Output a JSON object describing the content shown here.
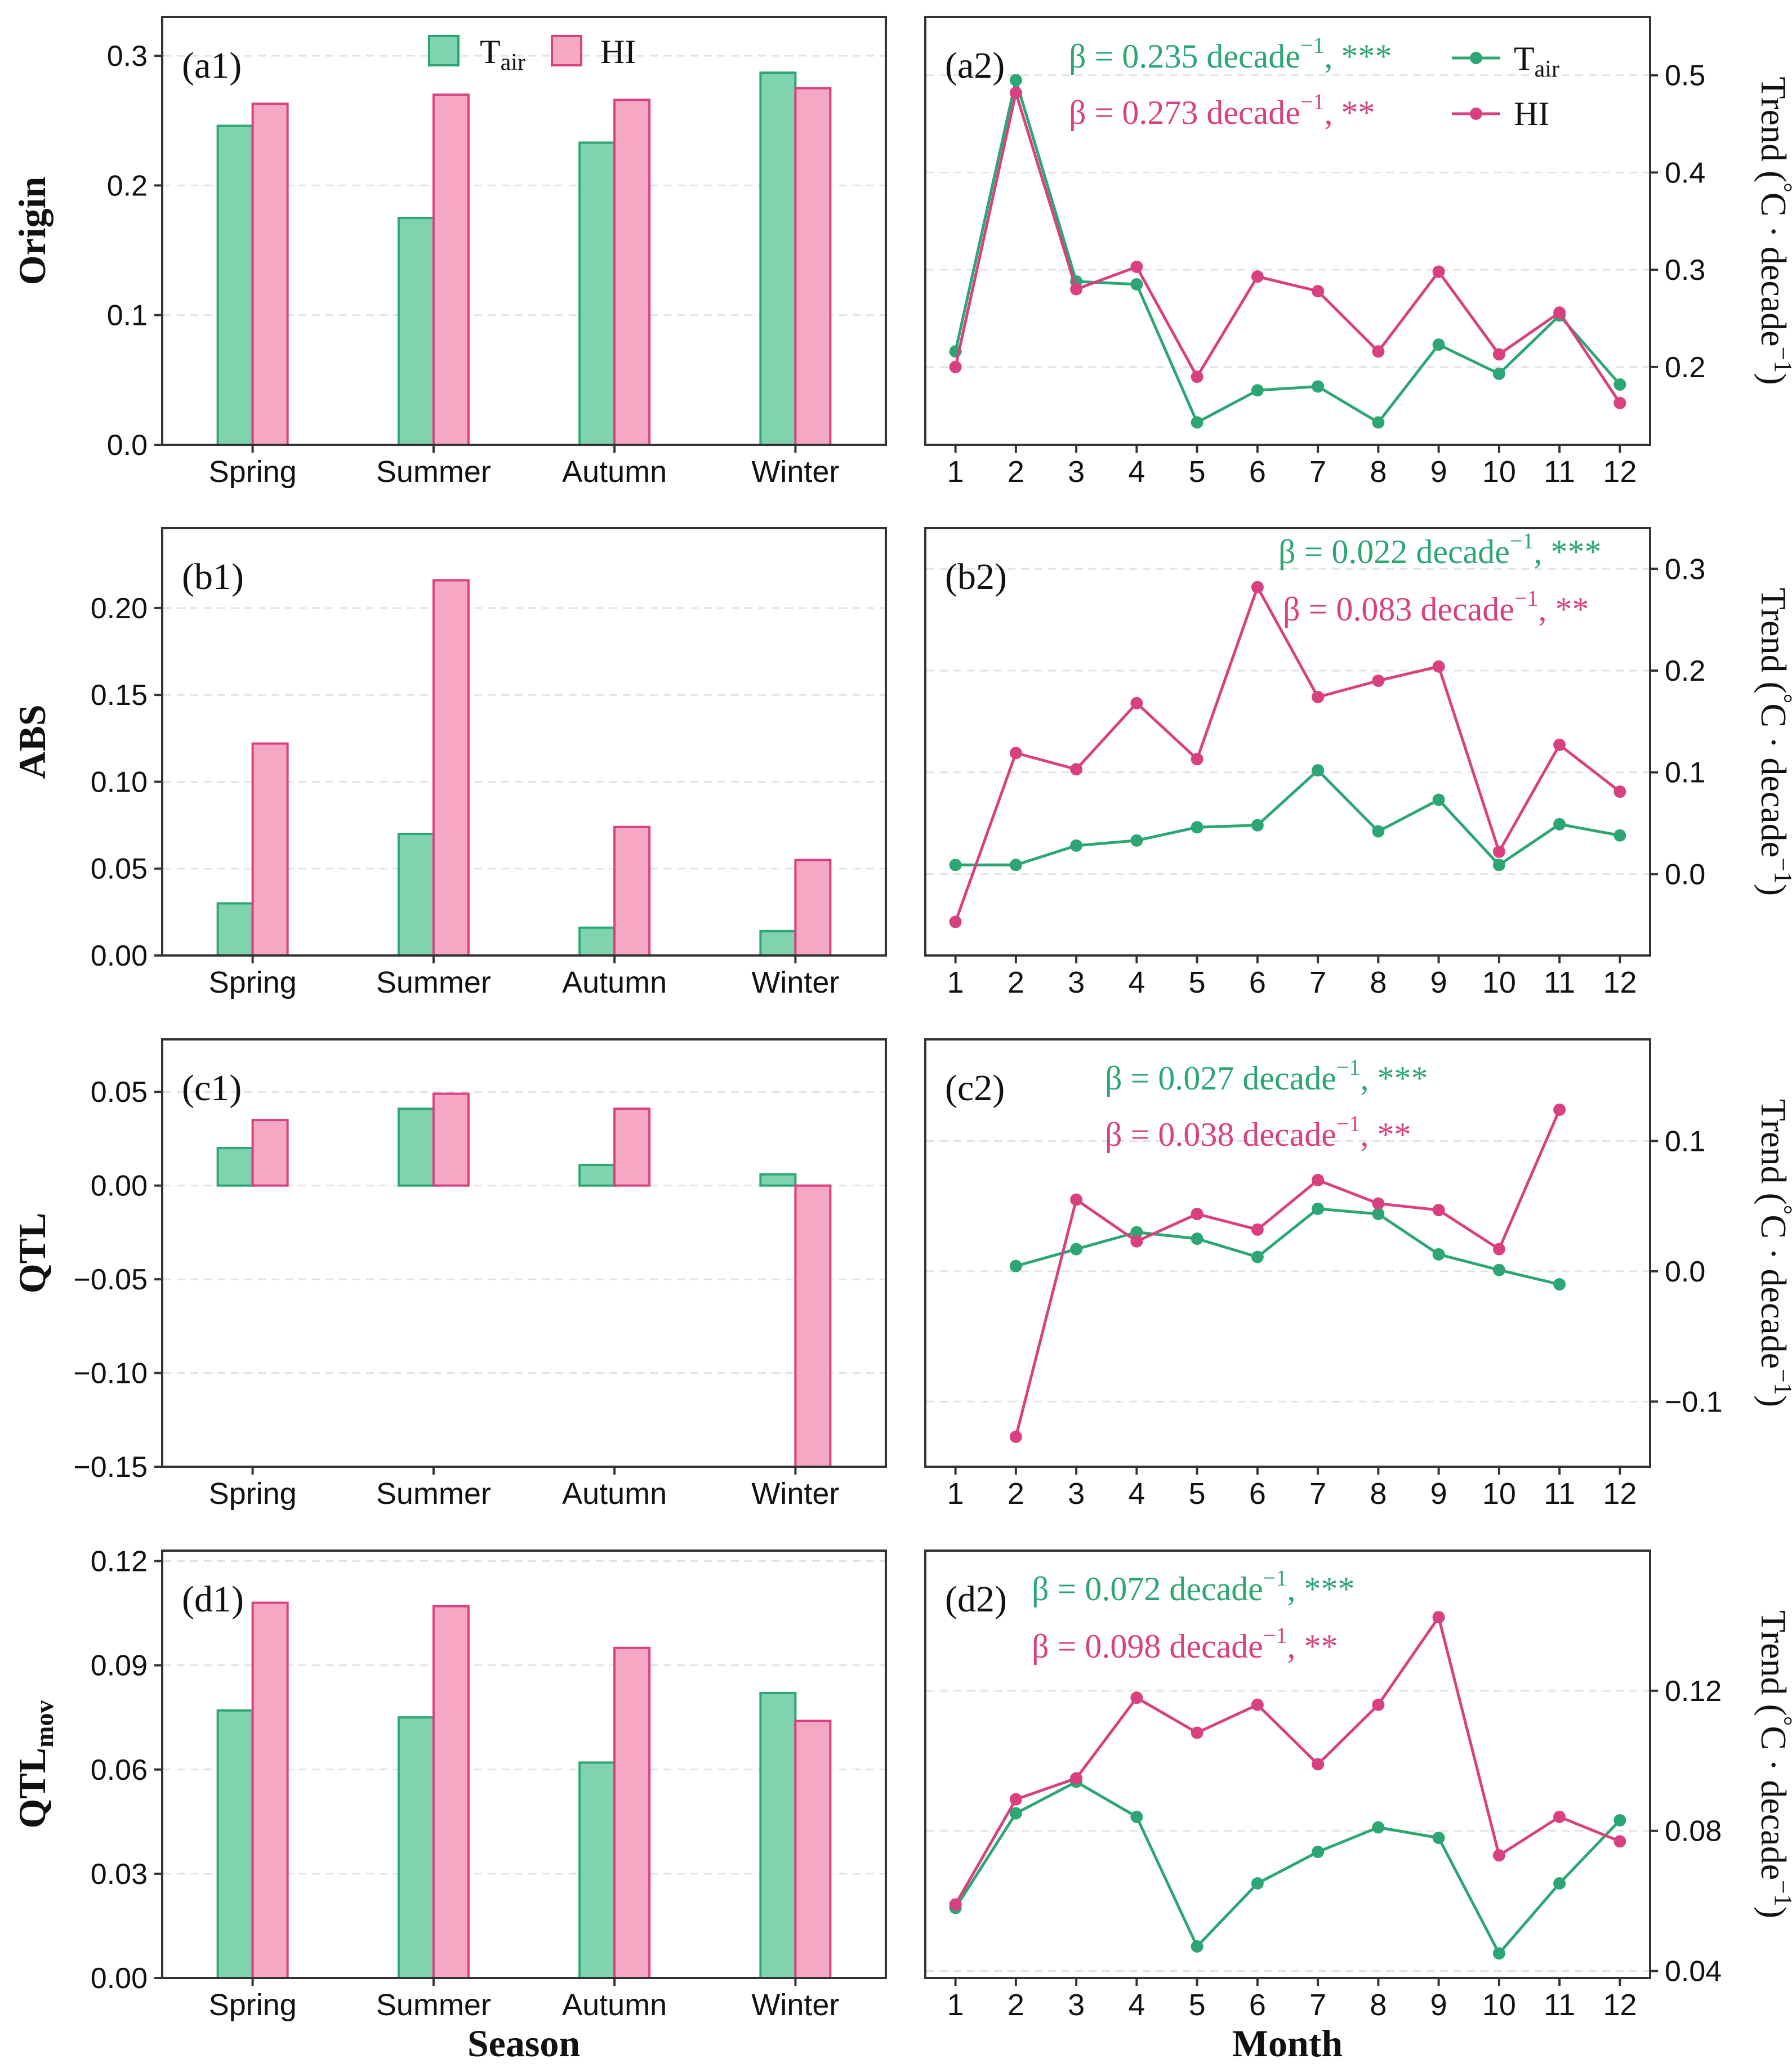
{
  "colors": {
    "tair": "#2ca673",
    "tair_fill": "#7fd3ae",
    "hi": "#d9407f",
    "hi_fill": "#f5a8c4",
    "grid": "#e3e3e3",
    "axis": "#333333"
  },
  "legend": {
    "tair_main": "T",
    "tair_sub": "air",
    "hi": "HI"
  },
  "row_labels": [
    "Origin",
    "ABS",
    "QTL",
    "QTL"
  ],
  "row_label_sub": "mov",
  "xlabel_left": "Season",
  "xlabel_right": "Month",
  "ylabel_right": {
    "prefix": "Trend (",
    "degree": "°",
    "unit": "C · decade",
    "exp": "−1",
    "suffix": ")"
  },
  "chart_data": [
    {
      "panel": "a1",
      "type": "bar",
      "tag": "(a1)",
      "categories": [
        "Spring",
        "Summer",
        "Autumn",
        "Winter"
      ],
      "series": [
        {
          "name": "Tair",
          "values": [
            0.246,
            0.175,
            0.233,
            0.287
          ]
        },
        {
          "name": "HI",
          "values": [
            0.263,
            0.27,
            0.266,
            0.275
          ]
        }
      ],
      "ylim": [
        0,
        0.33
      ],
      "yticks": [
        0.0,
        0.1,
        0.2,
        0.3
      ],
      "ytick_labels": [
        "0.0",
        "0.1",
        "0.2",
        "0.3"
      ],
      "grid": true,
      "legend": "top-center"
    },
    {
      "panel": "a2",
      "type": "line",
      "tag": "(a2)",
      "x": [
        1,
        2,
        3,
        4,
        5,
        6,
        7,
        8,
        9,
        10,
        11,
        12
      ],
      "series": [
        {
          "name": "Tair",
          "values": [
            0.216,
            0.495,
            0.288,
            0.285,
            0.143,
            0.176,
            0.18,
            0.143,
            0.223,
            0.193,
            0.253,
            0.182
          ]
        },
        {
          "name": "HI",
          "values": [
            0.2,
            0.482,
            0.28,
            0.303,
            0.19,
            0.293,
            0.278,
            0.216,
            0.298,
            0.213,
            0.256,
            0.163
          ]
        }
      ],
      "ylim": [
        0.12,
        0.56
      ],
      "yticks": [
        0.2,
        0.3,
        0.4,
        0.5
      ],
      "ytick_labels": [
        "0.2",
        "0.3",
        "0.4",
        "0.5"
      ],
      "xticks": [
        "1",
        "2",
        "3",
        "4",
        "5",
        "6",
        "7",
        "8",
        "9",
        "10",
        "11",
        "12"
      ],
      "annotations": [
        "β = 0.235 decade",
        "−1",
        ", ***",
        "β = 0.273 decade",
        "−1",
        ", **"
      ],
      "grid": true,
      "legend": "top-right"
    },
    {
      "panel": "b1",
      "type": "bar",
      "tag": "(b1)",
      "categories": [
        "Spring",
        "Summer",
        "Autumn",
        "Winter"
      ],
      "series": [
        {
          "name": "Tair",
          "values": [
            0.03,
            0.07,
            0.016,
            0.014
          ]
        },
        {
          "name": "HI",
          "values": [
            0.122,
            0.216,
            0.074,
            0.055
          ]
        }
      ],
      "ylim": [
        0,
        0.246
      ],
      "yticks": [
        0.0,
        0.05,
        0.1,
        0.15,
        0.2
      ],
      "ytick_labels": [
        "0.00",
        "0.05",
        "0.10",
        "0.15",
        "0.20"
      ],
      "grid": true
    },
    {
      "panel": "b2",
      "type": "line",
      "tag": "(b2)",
      "x": [
        1,
        2,
        3,
        4,
        5,
        6,
        7,
        8,
        9,
        10,
        11,
        12
      ],
      "series": [
        {
          "name": "Tair",
          "values": [
            0.009,
            0.009,
            0.028,
            0.033,
            0.046,
            0.048,
            0.102,
            0.042,
            0.073,
            0.009,
            0.049,
            0.038
          ]
        },
        {
          "name": "HI",
          "values": [
            -0.047,
            0.119,
            0.103,
            0.168,
            0.113,
            0.282,
            0.174,
            0.19,
            0.204,
            0.022,
            0.127,
            0.081
          ]
        }
      ],
      "ylim": [
        -0.08,
        0.34
      ],
      "yticks": [
        0.0,
        0.1,
        0.2,
        0.3
      ],
      "ytick_labels": [
        "0.0",
        "0.1",
        "0.2",
        "0.3"
      ],
      "xticks": [
        "1",
        "2",
        "3",
        "4",
        "5",
        "6",
        "7",
        "8",
        "9",
        "10",
        "11",
        "12"
      ],
      "annotations": [
        "β = 0.022 decade",
        "−1",
        ", ***",
        "β = 0.083 decade",
        "−1",
        ", **"
      ],
      "grid": true
    },
    {
      "panel": "c1",
      "type": "bar",
      "tag": "(c1)",
      "categories": [
        "Spring",
        "Summer",
        "Autumn",
        "Winter"
      ],
      "series": [
        {
          "name": "Tair",
          "values": [
            0.02,
            0.041,
            0.011,
            0.006
          ]
        },
        {
          "name": "HI",
          "values": [
            0.035,
            0.049,
            0.041,
            -0.15
          ]
        }
      ],
      "ylim": [
        -0.15,
        0.078
      ],
      "yticks": [
        -0.15,
        -0.1,
        -0.05,
        0.0,
        0.05
      ],
      "ytick_labels": [
        "−0.15",
        "−0.10",
        "−0.05",
        "0.00",
        "0.05"
      ],
      "grid": true
    },
    {
      "panel": "c2",
      "type": "line",
      "tag": "(c2)",
      "x": [
        1,
        2,
        3,
        4,
        5,
        6,
        7,
        8,
        9,
        10,
        11,
        12
      ],
      "series": [
        {
          "name": "Tair",
          "x": [
            2,
            3,
            4,
            5,
            6,
            7,
            8,
            9,
            10,
            11
          ],
          "values": [
            0.004,
            0.017,
            0.03,
            0.025,
            0.011,
            0.048,
            0.044,
            0.013,
            0.001,
            -0.01
          ]
        },
        {
          "name": "HI",
          "x": [
            2,
            3,
            4,
            5,
            6,
            7,
            8,
            9,
            10,
            11
          ],
          "values": [
            -0.127,
            0.055,
            0.023,
            0.044,
            0.032,
            0.07,
            0.052,
            0.047,
            0.017,
            0.124
          ]
        }
      ],
      "ylim": [
        -0.15,
        0.178
      ],
      "yticks": [
        -0.1,
        0.0,
        0.1
      ],
      "ytick_labels": [
        "−0.1",
        "0.0",
        "0.1"
      ],
      "xticks": [
        "1",
        "2",
        "3",
        "4",
        "5",
        "6",
        "7",
        "8",
        "9",
        "10",
        "11",
        "12"
      ],
      "annotations": [
        "β = 0.027 decade",
        "−1",
        ", ***",
        "β = 0.038 decade",
        "−1",
        ", **"
      ],
      "grid": true
    },
    {
      "panel": "d1",
      "type": "bar",
      "tag": "(d1)",
      "categories": [
        "Spring",
        "Summer",
        "Autumn",
        "Winter"
      ],
      "series": [
        {
          "name": "Tair",
          "values": [
            0.077,
            0.075,
            0.062,
            0.082
          ]
        },
        {
          "name": "HI",
          "values": [
            0.108,
            0.107,
            0.095,
            0.074
          ]
        }
      ],
      "ylim": [
        0,
        0.123
      ],
      "yticks": [
        0.0,
        0.03,
        0.06,
        0.09,
        0.12
      ],
      "ytick_labels": [
        "0.00",
        "0.03",
        "0.06",
        "0.09",
        "0.12"
      ],
      "grid": true
    },
    {
      "panel": "d2",
      "type": "line",
      "tag": "(d2)",
      "x": [
        1,
        2,
        3,
        4,
        5,
        6,
        7,
        8,
        9,
        10,
        11,
        12
      ],
      "series": [
        {
          "name": "Tair",
          "values": [
            0.058,
            0.085,
            0.094,
            0.084,
            0.047,
            0.065,
            0.074,
            0.081,
            0.078,
            0.045,
            0.065,
            0.083
          ]
        },
        {
          "name": "HI",
          "values": [
            0.059,
            0.089,
            0.095,
            0.118,
            0.108,
            0.116,
            0.099,
            0.116,
            0.141,
            0.073,
            0.084,
            0.077
          ]
        }
      ],
      "ylim": [
        0.038,
        0.16
      ],
      "yticks": [
        0.04,
        0.08,
        0.12
      ],
      "ytick_labels": [
        "0.04",
        "0.08",
        "0.12"
      ],
      "xticks": [
        "1",
        "2",
        "3",
        "4",
        "5",
        "6",
        "7",
        "8",
        "9",
        "10",
        "11",
        "12"
      ],
      "annotations": [
        "β = 0.072 decade",
        "−1",
        ", ***",
        "β = 0.098 decade",
        "−1",
        ", **"
      ],
      "grid": true
    }
  ]
}
